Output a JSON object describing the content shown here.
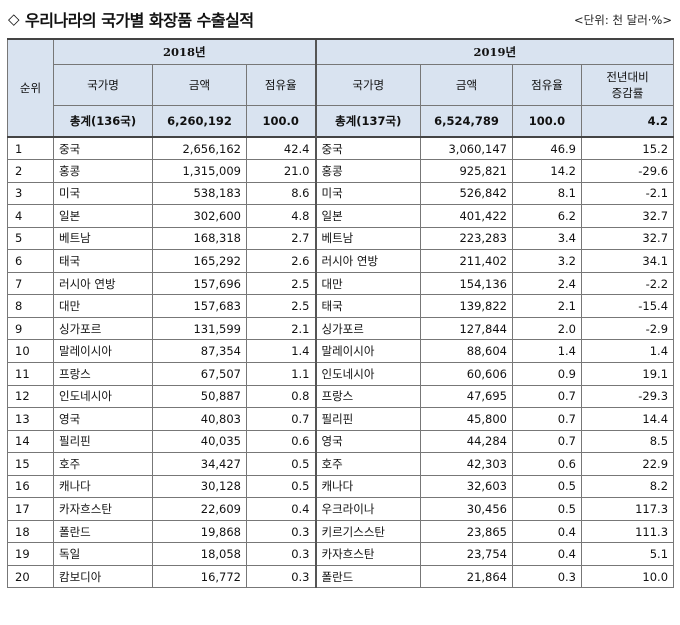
{
  "title": "우리나라의 국가별 화장품 수출실적",
  "title_icon": "diamond-outline-icon",
  "unit_note": "<단위: 천 달러·%>",
  "headers": {
    "rank": "순위",
    "year_2018": "2018년",
    "year_2019": "2019년",
    "country": "국가명",
    "amount": "금액",
    "share": "점유율",
    "yoy_line1": "전년대비",
    "yoy_line2": "증감률"
  },
  "totals": {
    "y2018": {
      "country": "총계(136국)",
      "amount": "6,260,192",
      "share": "100.0"
    },
    "y2019": {
      "country": "총계(137국)",
      "amount": "6,524,789",
      "share": "100.0",
      "yoy": "4.2"
    }
  },
  "rows": [
    {
      "rank": "1",
      "c18": "중국",
      "a18": "2,656,162",
      "s18": "42.4",
      "c19": "중국",
      "a19": "3,060,147",
      "s19": "46.9",
      "yoy": "15.2"
    },
    {
      "rank": "2",
      "c18": "홍콩",
      "a18": "1,315,009",
      "s18": "21.0",
      "c19": "홍콩",
      "a19": "925,821",
      "s19": "14.2",
      "yoy": "-29.6"
    },
    {
      "rank": "3",
      "c18": "미국",
      "a18": "538,183",
      "s18": "8.6",
      "c19": "미국",
      "a19": "526,842",
      "s19": "8.1",
      "yoy": "-2.1"
    },
    {
      "rank": "4",
      "c18": "일본",
      "a18": "302,600",
      "s18": "4.8",
      "c19": "일본",
      "a19": "401,422",
      "s19": "6.2",
      "yoy": "32.7"
    },
    {
      "rank": "5",
      "c18": "베트남",
      "a18": "168,318",
      "s18": "2.7",
      "c19": "베트남",
      "a19": "223,283",
      "s19": "3.4",
      "yoy": "32.7"
    },
    {
      "rank": "6",
      "c18": "태국",
      "a18": "165,292",
      "s18": "2.6",
      "c19": "러시아 연방",
      "a19": "211,402",
      "s19": "3.2",
      "yoy": "34.1"
    },
    {
      "rank": "7",
      "c18": "러시아 연방",
      "a18": "157,696",
      "s18": "2.5",
      "c19": "대만",
      "a19": "154,136",
      "s19": "2.4",
      "yoy": "-2.2"
    },
    {
      "rank": "8",
      "c18": "대만",
      "a18": "157,683",
      "s18": "2.5",
      "c19": "태국",
      "a19": "139,822",
      "s19": "2.1",
      "yoy": "-15.4"
    },
    {
      "rank": "9",
      "c18": "싱가포르",
      "a18": "131,599",
      "s18": "2.1",
      "c19": "싱가포르",
      "a19": "127,844",
      "s19": "2.0",
      "yoy": "-2.9"
    },
    {
      "rank": "10",
      "c18": "말레이시아",
      "a18": "87,354",
      "s18": "1.4",
      "c19": "말레이시아",
      "a19": "88,604",
      "s19": "1.4",
      "yoy": "1.4"
    },
    {
      "rank": "11",
      "c18": "프랑스",
      "a18": "67,507",
      "s18": "1.1",
      "c19": "인도네시아",
      "a19": "60,606",
      "s19": "0.9",
      "yoy": "19.1"
    },
    {
      "rank": "12",
      "c18": "인도네시아",
      "a18": "50,887",
      "s18": "0.8",
      "c19": "프랑스",
      "a19": "47,695",
      "s19": "0.7",
      "yoy": "-29.3"
    },
    {
      "rank": "13",
      "c18": "영국",
      "a18": "40,803",
      "s18": "0.7",
      "c19": "필리핀",
      "a19": "45,800",
      "s19": "0.7",
      "yoy": "14.4"
    },
    {
      "rank": "14",
      "c18": "필리핀",
      "a18": "40,035",
      "s18": "0.6",
      "c19": "영국",
      "a19": "44,284",
      "s19": "0.7",
      "yoy": "8.5"
    },
    {
      "rank": "15",
      "c18": "호주",
      "a18": "34,427",
      "s18": "0.5",
      "c19": "호주",
      "a19": "42,303",
      "s19": "0.6",
      "yoy": "22.9"
    },
    {
      "rank": "16",
      "c18": "캐나다",
      "a18": "30,128",
      "s18": "0.5",
      "c19": "캐나다",
      "a19": "32,603",
      "s19": "0.5",
      "yoy": "8.2"
    },
    {
      "rank": "17",
      "c18": "카자흐스탄",
      "a18": "22,609",
      "s18": "0.4",
      "c19": "우크라이나",
      "a19": "30,456",
      "s19": "0.5",
      "yoy": "117.3"
    },
    {
      "rank": "18",
      "c18": "폴란드",
      "a18": "19,868",
      "s18": "0.3",
      "c19": "키르기스스탄",
      "a19": "23,865",
      "s19": "0.4",
      "yoy": "111.3"
    },
    {
      "rank": "19",
      "c18": "독일",
      "a18": "18,058",
      "s18": "0.3",
      "c19": "카자흐스탄",
      "a19": "23,754",
      "s19": "0.4",
      "yoy": "5.1"
    },
    {
      "rank": "20",
      "c18": "캄보디아",
      "a18": "16,772",
      "s18": "0.3",
      "c19": "폴란드",
      "a19": "21,864",
      "s19": "0.3",
      "yoy": "10.0"
    }
  ]
}
